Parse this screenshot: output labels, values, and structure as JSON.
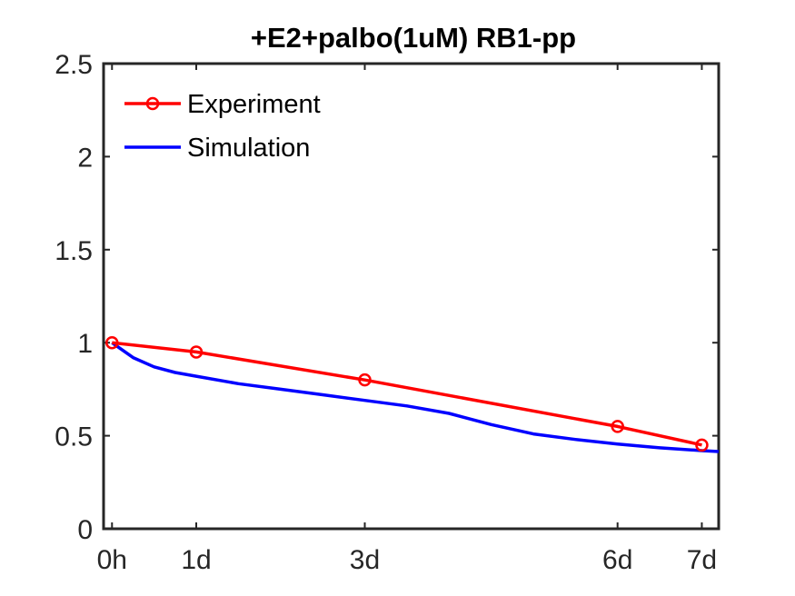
{
  "chart_data": {
    "type": "line",
    "title": "+E2+palbo(1uM) RB1-pp",
    "xlabel": "",
    "ylabel": "",
    "x_ticks": [
      {
        "x": 0,
        "label": "0h"
      },
      {
        "x": 1,
        "label": "1d"
      },
      {
        "x": 3,
        "label": "3d"
      },
      {
        "x": 6,
        "label": "6d"
      },
      {
        "x": 7,
        "label": "7d"
      }
    ],
    "xlim": [
      -0.1,
      7.2
    ],
    "ylim": [
      0,
      2.5
    ],
    "y_ticks": [
      {
        "y": 0,
        "label": "0"
      },
      {
        "y": 0.5,
        "label": "0.5"
      },
      {
        "y": 1,
        "label": "1"
      },
      {
        "y": 1.5,
        "label": "1.5"
      },
      {
        "y": 2,
        "label": "2"
      },
      {
        "y": 2.5,
        "label": "2.5"
      }
    ],
    "grid": false,
    "legend_position": "top-left",
    "series": [
      {
        "name": "Experiment",
        "color": "#ff0000",
        "marker": "circle",
        "x": [
          0,
          1,
          3,
          6,
          7
        ],
        "y": [
          1.0,
          0.95,
          0.8,
          0.55,
          0.45
        ]
      },
      {
        "name": "Simulation",
        "color": "#0000ff",
        "marker": "none",
        "x": [
          0,
          0.25,
          0.5,
          0.75,
          1,
          1.5,
          2,
          2.5,
          3,
          3.5,
          4,
          4.5,
          5,
          5.5,
          6,
          6.5,
          7,
          7.2
        ],
        "y": [
          1.0,
          0.92,
          0.87,
          0.84,
          0.82,
          0.78,
          0.75,
          0.72,
          0.69,
          0.66,
          0.62,
          0.56,
          0.51,
          0.48,
          0.455,
          0.435,
          0.42,
          0.415
        ]
      }
    ]
  }
}
